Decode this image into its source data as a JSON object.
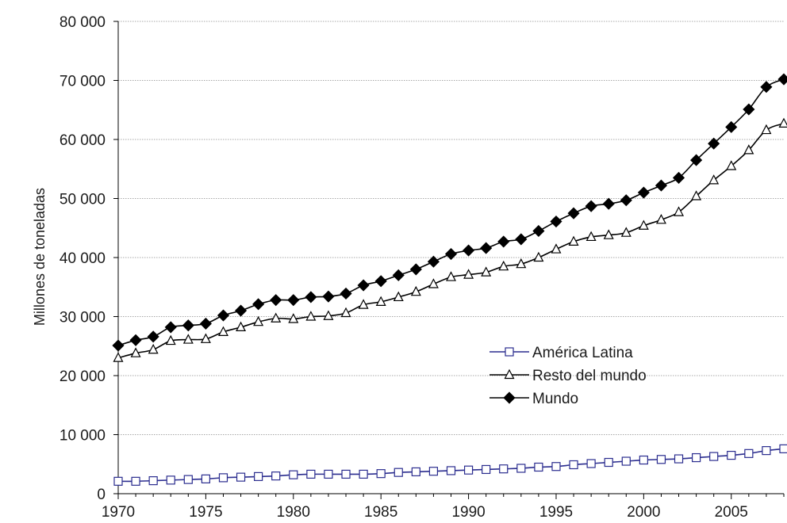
{
  "chart_data": {
    "type": "line",
    "title": "",
    "xlabel": "",
    "ylabel": "Millones de toneladas",
    "xlim": [
      1970,
      2008
    ],
    "ylim": [
      0,
      80000
    ],
    "x_ticks": [
      1970,
      1975,
      1980,
      1985,
      1990,
      1995,
      2000,
      2005
    ],
    "y_ticks": [
      0,
      10000,
      20000,
      30000,
      40000,
      50000,
      60000,
      70000,
      80000
    ],
    "y_tick_labels": [
      "0",
      "10 000",
      "20 000",
      "30 000",
      "40 000",
      "50 000",
      "60 000",
      "70 000",
      "80 000"
    ],
    "grid": "horizontal dotted",
    "legend_position": "center-right",
    "x": [
      1970,
      1971,
      1972,
      1973,
      1974,
      1975,
      1976,
      1977,
      1978,
      1979,
      1980,
      1981,
      1982,
      1983,
      1984,
      1985,
      1986,
      1987,
      1988,
      1989,
      1990,
      1991,
      1992,
      1993,
      1994,
      1995,
      1996,
      1997,
      1998,
      1999,
      2000,
      2001,
      2002,
      2003,
      2004,
      2005,
      2006,
      2007,
      2008
    ],
    "series": [
      {
        "name": "América Latina",
        "color": "#2b2d8f",
        "marker": "open-square",
        "values": [
          2100,
          2100,
          2200,
          2300,
          2400,
          2500,
          2700,
          2800,
          2900,
          3000,
          3200,
          3300,
          3300,
          3300,
          3300,
          3400,
          3600,
          3700,
          3800,
          3900,
          4000,
          4100,
          4200,
          4300,
          4500,
          4600,
          4900,
          5100,
          5300,
          5500,
          5700,
          5800,
          5900,
          6100,
          6300,
          6500,
          6800,
          7300,
          7600
        ]
      },
      {
        "name": "Resto del mundo",
        "color": "#000000",
        "marker": "open-triangle",
        "values": [
          23000,
          23800,
          24400,
          25900,
          26100,
          26200,
          27400,
          28200,
          29100,
          29700,
          29600,
          30000,
          30100,
          30600,
          32000,
          32500,
          33300,
          34200,
          35500,
          36700,
          37100,
          37500,
          38500,
          38900,
          40000,
          41400,
          42700,
          43500,
          43800,
          44200,
          45400,
          46400,
          47700,
          50400,
          53100,
          55500,
          58200,
          61600,
          62700
        ]
      },
      {
        "name": "Mundo",
        "color": "#000000",
        "marker": "filled-diamond",
        "values": [
          25100,
          26000,
          26600,
          28200,
          28500,
          28800,
          30200,
          31000,
          32100,
          32800,
          32800,
          33300,
          33400,
          33900,
          35300,
          36000,
          37000,
          38000,
          39300,
          40600,
          41200,
          41600,
          42700,
          43100,
          44500,
          46100,
          47500,
          48700,
          49100,
          49700,
          51000,
          52200,
          53500,
          56500,
          59300,
          62100,
          65100,
          68900,
          70200
        ]
      }
    ]
  }
}
